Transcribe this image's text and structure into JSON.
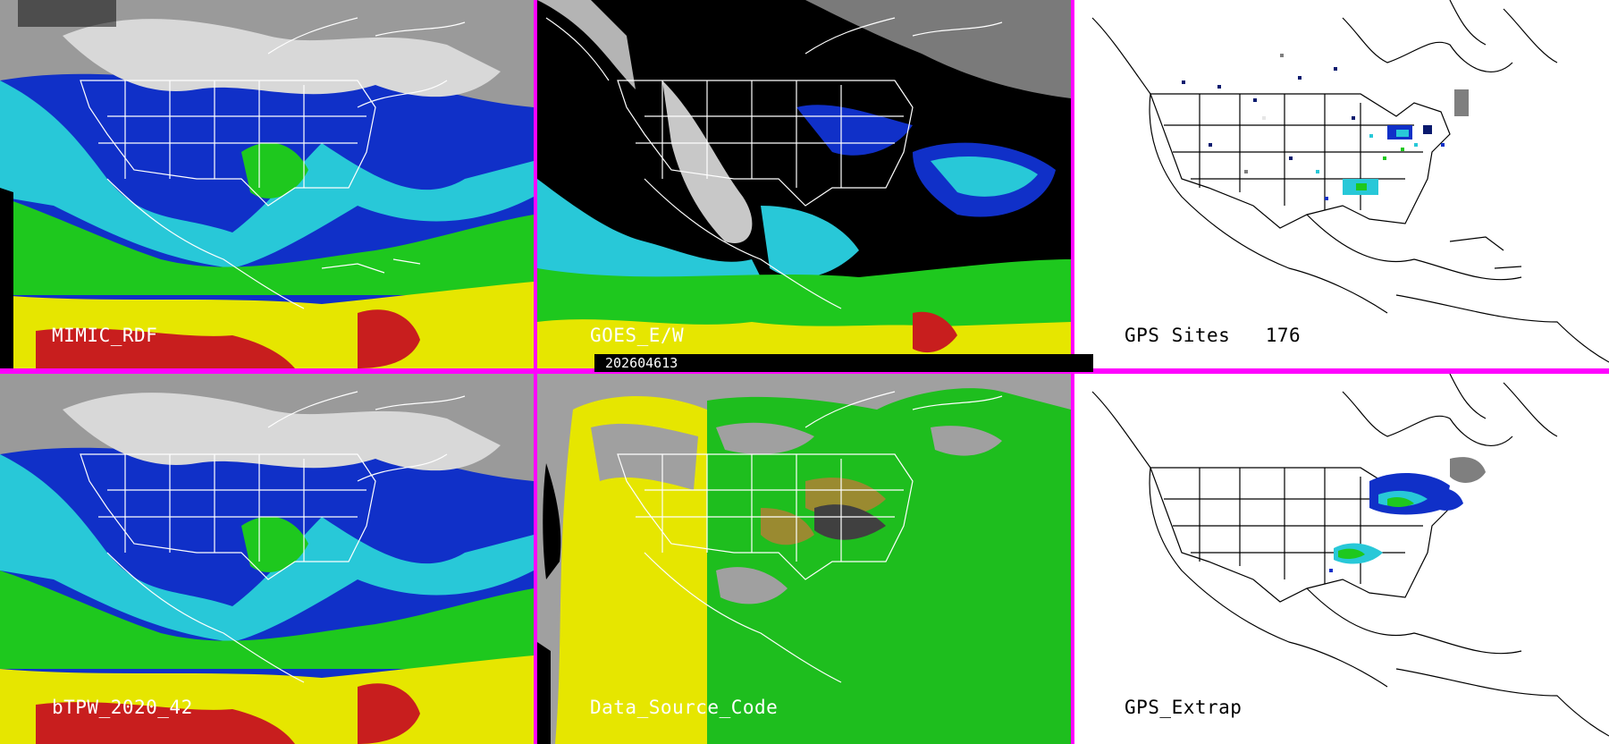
{
  "panels": [
    {
      "id": "mimic",
      "label": "MIMIC_RDF"
    },
    {
      "id": "goes",
      "label": "GOES_E/W"
    },
    {
      "id": "gps-sites",
      "label": "GPS Sites   176"
    },
    {
      "id": "btpw",
      "label": "bTPW_2020_42"
    },
    {
      "id": "datasource",
      "label": "Data_Source_Code"
    },
    {
      "id": "gps-extrap",
      "label": "GPS_Extrap"
    }
  ],
  "timestamp": "202604613",
  "colors": {
    "frame": "#ff00ff",
    "tpw_scale": [
      "#7f7f7f",
      "#e6e6e6",
      "#0a1a6e",
      "#1030c8",
      "#28c8d8",
      "#7ff0f0",
      "#1ec81e",
      "#c8e600",
      "#e6e600",
      "#d2a000",
      "#c81e1e"
    ],
    "source_yellow": "#e6e600",
    "source_green": "#1ebe1e",
    "source_gray": "#a0a0a0"
  }
}
